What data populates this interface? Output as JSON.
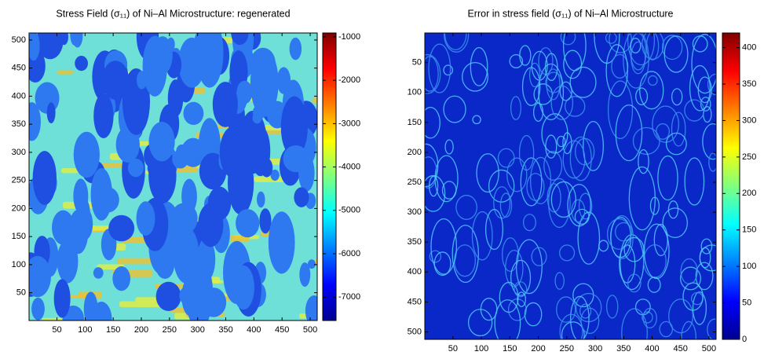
{
  "chart_data": [
    {
      "type": "heatmap",
      "title": "Stress Field (σ₁₁) of Ni–Al Microstructure: regenerated",
      "colormap": "jet",
      "y_reversed": false,
      "xlim": [
        0.5,
        512.5
      ],
      "ylim": [
        0.5,
        512.5
      ],
      "xticks": [
        50,
        100,
        150,
        200,
        250,
        300,
        350,
        400,
        450,
        500
      ],
      "yticks": [
        50,
        100,
        150,
        200,
        250,
        300,
        350,
        400,
        450,
        500
      ],
      "clim": [
        -7540,
        -910
      ],
      "cticks": [
        -7000,
        -6000,
        -5000,
        -4000,
        -3000,
        -2000,
        -1000
      ]
    },
    {
      "type": "heatmap",
      "title": "Error in stress field (σ₁₁) of Ni–Al Microstructure",
      "colormap": "jet",
      "y_reversed": true,
      "xlim": [
        0.5,
        512.5
      ],
      "ylim": [
        0.5,
        512.5
      ],
      "xticks": [
        50,
        100,
        150,
        200,
        250,
        300,
        350,
        400,
        450,
        500
      ],
      "yticks": [
        50,
        100,
        150,
        200,
        250,
        300,
        350,
        400,
        450,
        500
      ],
      "clim": [
        0,
        420
      ],
      "cticks": [
        0,
        50,
        100,
        150,
        200,
        250,
        300,
        350,
        400
      ]
    }
  ]
}
